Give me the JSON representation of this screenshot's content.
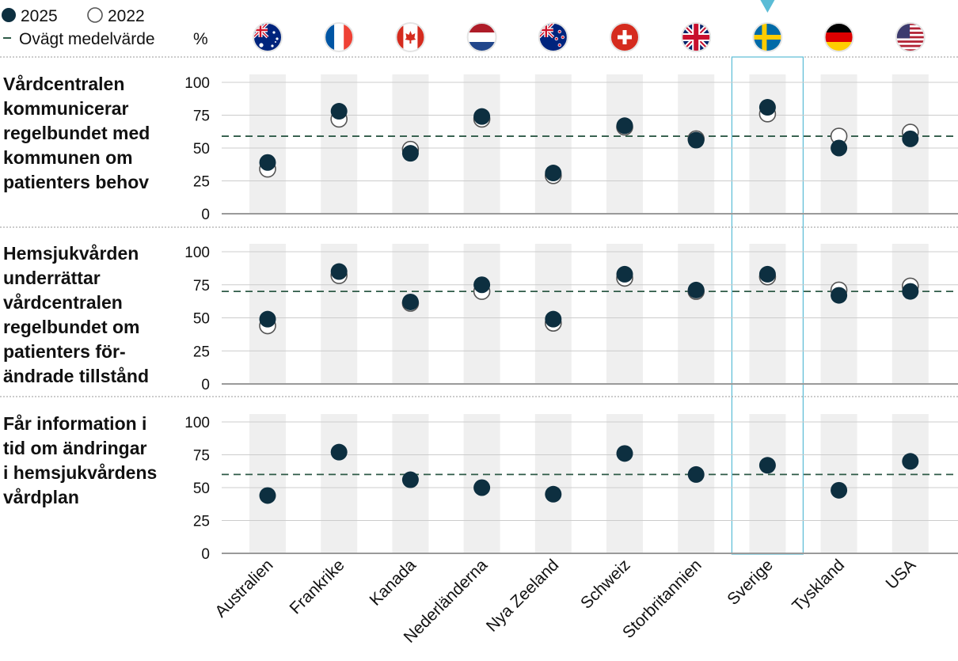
{
  "legend": {
    "series_2025": "2025",
    "series_2022": "2022",
    "avg_label": "Ovägt medelvärde",
    "unit": "%"
  },
  "colors": {
    "dot_2025": "#0d2f40",
    "dot_2022_stroke": "#555555",
    "avg_line": "#2e5a47",
    "band": "#efefef",
    "highlight": "#5bbcd6",
    "grid": "#cccccc"
  },
  "countries": [
    {
      "name": "Australien",
      "flag": "australia-flag-icon",
      "highlight": false
    },
    {
      "name": "Frankrike",
      "flag": "france-flag-icon",
      "highlight": false
    },
    {
      "name": "Kanada",
      "flag": "canada-flag-icon",
      "highlight": false
    },
    {
      "name": "Nederländerna",
      "flag": "netherlands-flag-icon",
      "highlight": false
    },
    {
      "name": "Nya Zeeland",
      "flag": "new-zealand-flag-icon",
      "highlight": false
    },
    {
      "name": "Schweiz",
      "flag": "switzerland-flag-icon",
      "highlight": false
    },
    {
      "name": "Storbritannien",
      "flag": "uk-flag-icon",
      "highlight": false
    },
    {
      "name": "Sverige",
      "flag": "sweden-flag-icon",
      "highlight": true
    },
    {
      "name": "Tyskland",
      "flag": "germany-flag-icon",
      "highlight": false
    },
    {
      "name": "USA",
      "flag": "usa-flag-icon",
      "highlight": false
    }
  ],
  "chart_data": [
    {
      "type": "scatter",
      "title": "Vårdcentralen kommunicerar regelbundet med kommunen om patienters behov",
      "title_lines": [
        "Vårdcentralen",
        "kommunicerar",
        "regelbundet med",
        "kommunen om",
        "patienters behov"
      ],
      "ylim": [
        0,
        100
      ],
      "yticks": [
        0,
        25,
        50,
        75,
        100
      ],
      "categories": [
        "Australien",
        "Frankrike",
        "Kanada",
        "Nederländerna",
        "Nya Zeeland",
        "Schweiz",
        "Storbritannien",
        "Sverige",
        "Tyskland",
        "USA"
      ],
      "series": [
        {
          "name": "2022",
          "values": [
            34,
            72,
            49,
            72,
            29,
            66,
            57,
            76,
            59,
            62
          ]
        },
        {
          "name": "2025",
          "values": [
            39,
            78,
            46,
            74,
            31,
            67,
            56,
            81,
            50,
            57
          ]
        }
      ],
      "average": 59
    },
    {
      "type": "scatter",
      "title": "Hemsjukvården underrättar vårdcentralen regelbundet om patienters förändrade tillstånd",
      "title_lines": [
        "Hemsjukvården",
        "underrättar",
        "vårdcentralen",
        "regelbundet om",
        "patienters för-",
        "ändrade tillstånd"
      ],
      "ylim": [
        0,
        100
      ],
      "yticks": [
        0,
        25,
        50,
        75,
        100
      ],
      "categories": [
        "Australien",
        "Frankrike",
        "Kanada",
        "Nederländerna",
        "Nya Zeeland",
        "Schweiz",
        "Storbritannien",
        "Sverige",
        "Tyskland",
        "USA"
      ],
      "series": [
        {
          "name": "2022",
          "values": [
            44,
            82,
            61,
            70,
            46,
            80,
            70,
            81,
            71,
            74
          ]
        },
        {
          "name": "2025",
          "values": [
            49,
            85,
            62,
            75,
            49,
            83,
            71,
            83,
            67,
            70
          ]
        }
      ],
      "average": 70
    },
    {
      "type": "scatter",
      "title": "Får information i tid om ändringar i hemsjukvårdens vårdplan",
      "title_lines": [
        "Får information i",
        "tid om ändringar",
        "i hemsjukvårdens",
        "vårdplan"
      ],
      "ylim": [
        0,
        100
      ],
      "yticks": [
        0,
        25,
        50,
        75,
        100
      ],
      "categories": [
        "Australien",
        "Frankrike",
        "Kanada",
        "Nederländerna",
        "Nya Zeeland",
        "Schweiz",
        "Storbritannien",
        "Sverige",
        "Tyskland",
        "USA"
      ],
      "series": [
        {
          "name": "2025",
          "values": [
            44,
            77,
            56,
            50,
            45,
            76,
            60,
            67,
            48,
            70
          ]
        }
      ],
      "average": 60
    }
  ]
}
